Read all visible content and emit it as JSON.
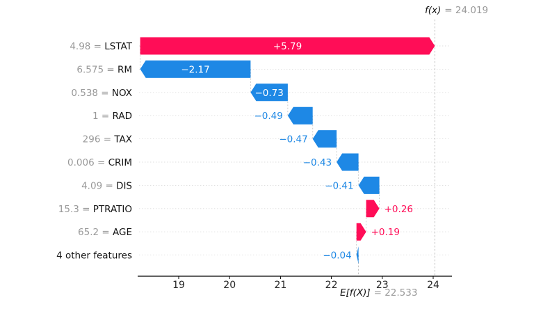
{
  "chart_data": {
    "type": "waterfall",
    "style": "shap-explanation",
    "fx_label": "f(x)",
    "fx_value_text": "= 24.019",
    "fx_value": 24.019,
    "base_label": "E[f(X)]",
    "base_value_text": "= 22.533",
    "base_value": 22.533,
    "x_ticks": [
      19,
      20,
      21,
      22,
      23,
      24
    ],
    "xlim": [
      18.22,
      24.42
    ],
    "grid": "dotted-horizontal-per-row",
    "legend": "none",
    "features": [
      {
        "name": "LSTAT",
        "value_label": "4.98 = ",
        "contribution": 5.79,
        "contribution_label": "+5.79"
      },
      {
        "name": "RM",
        "value_label": "6.575 = ",
        "contribution": -2.17,
        "contribution_label": "−2.17"
      },
      {
        "name": "NOX",
        "value_label": "0.538 = ",
        "contribution": -0.73,
        "contribution_label": "−0.73"
      },
      {
        "name": "RAD",
        "value_label": "1 = ",
        "contribution": -0.49,
        "contribution_label": "−0.49"
      },
      {
        "name": "TAX",
        "value_label": "296 = ",
        "contribution": -0.47,
        "contribution_label": "−0.47"
      },
      {
        "name": "CRIM",
        "value_label": "0.006 = ",
        "contribution": -0.43,
        "contribution_label": "−0.43"
      },
      {
        "name": "DIS",
        "value_label": "4.09 = ",
        "contribution": -0.41,
        "contribution_label": "−0.41"
      },
      {
        "name": "PTRATIO",
        "value_label": "15.3 = ",
        "contribution": 0.26,
        "contribution_label": "+0.26"
      },
      {
        "name": "AGE",
        "value_label": "65.2 = ",
        "contribution": 0.19,
        "contribution_label": "+0.19"
      },
      {
        "name": "4 other features",
        "value_label": "",
        "contribution": -0.04,
        "contribution_label": "−0.04"
      }
    ],
    "colors": {
      "positive": "#ff0d57",
      "negative": "#1e88e5",
      "bar_inner_text": "#ffffff",
      "muted_text": "#999999",
      "text": "#151515",
      "gridline": "#dcdcdc",
      "connector": "#c7c7c7",
      "dashed_refline": "#bbbbbb",
      "axis": "#000000",
      "background": "#ffffff"
    }
  }
}
